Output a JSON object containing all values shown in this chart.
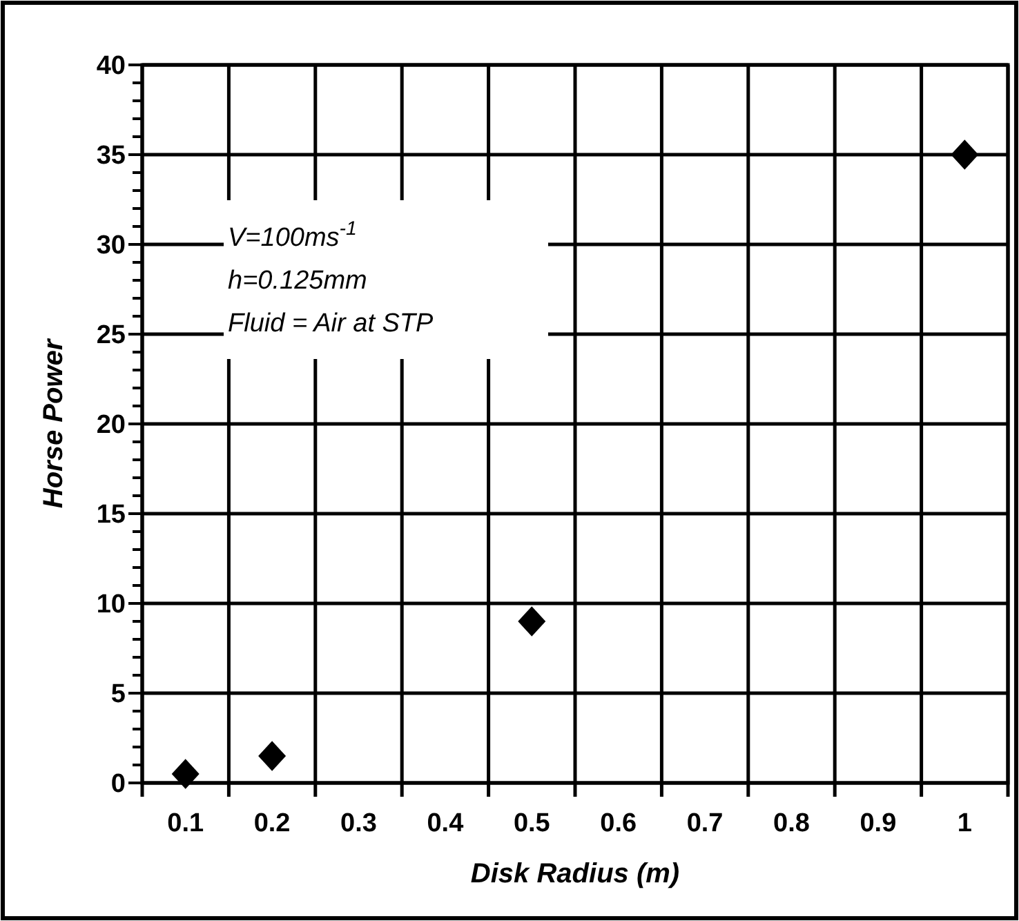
{
  "chart_data": {
    "type": "scatter",
    "xlabel": "Disk Radius (m)",
    "ylabel": "Horse Power",
    "categories": [
      "0.1",
      "0.2",
      "0.3",
      "0.4",
      "0.5",
      "0.6",
      "0.7",
      "0.8",
      "0.9",
      "1"
    ],
    "series": [
      {
        "color": "#000000",
        "x": [
          "0.1",
          "0.2",
          "0.5",
          "1"
        ],
        "values": [
          0.5,
          1.5,
          9,
          35
        ]
      }
    ],
    "marker": "diamond",
    "ylim": [
      0,
      40
    ],
    "yticks": [
      0,
      {
        "value": 1,
        "label": null
      },
      {
        "value": 2,
        "label": null
      },
      {
        "value": 3,
        "label": null
      },
      {
        "value": 4,
        "label": null
      },
      5,
      {
        "value": 6,
        "label": null
      },
      {
        "value": 7,
        "label": null
      },
      {
        "value": 8,
        "label": null
      },
      {
        "value": 9,
        "label": null
      },
      10,
      {
        "value": 11,
        "label": null
      },
      {
        "value": 12,
        "label": null
      },
      {
        "value": 13,
        "label": null
      },
      {
        "value": 14,
        "label": null
      },
      15,
      {
        "value": 16,
        "label": null
      },
      {
        "value": 17,
        "label": null
      },
      {
        "value": 18,
        "label": null
      },
      {
        "value": 19,
        "label": null
      },
      20,
      {
        "value": 21,
        "label": null
      },
      {
        "value": 22,
        "label": null
      },
      {
        "value": 23,
        "label": null
      },
      {
        "value": 24,
        "label": null
      },
      25,
      {
        "value": 26,
        "label": null
      },
      {
        "value": 27,
        "label": null
      },
      {
        "value": 28,
        "label": null
      },
      {
        "value": 29,
        "label": null
      },
      30,
      {
        "value": 31,
        "label": null
      },
      {
        "value": 32,
        "label": null
      },
      {
        "value": 33,
        "label": null
      },
      {
        "value": 34,
        "label": null
      },
      35,
      {
        "value": 36,
        "label": null
      },
      {
        "value": 37,
        "label": null
      },
      {
        "value": 38,
        "label": null
      },
      {
        "value": 39,
        "label": null
      },
      40
    ],
    "grid": true,
    "annotations": [
      "V=100ms$^{-1}$",
      "h=0.125mm",
      "Fluid = Air at STP"
    ]
  }
}
